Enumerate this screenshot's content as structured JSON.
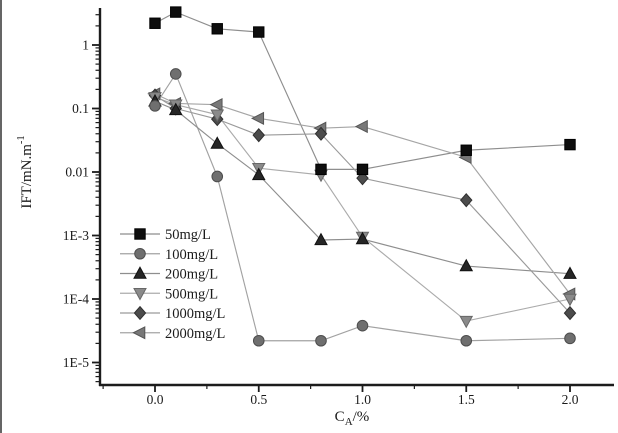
{
  "page": {
    "background": "#ffffff",
    "scan_edge_color": "#4a4a4a",
    "axis_text_color": "#1a1a1a",
    "axis_line_color": "#1c1c1c"
  },
  "chart_data": {
    "type": "line",
    "title": "",
    "xlabel": "C_A/%",
    "xlabel_rich": {
      "base": "C",
      "subscript": "A",
      "rest": "/%"
    },
    "ylabel": "IFT/mN.m-1",
    "ylabel_rich": {
      "base": "IFT/mN.m",
      "superscript": "-1"
    },
    "x_scale": "linear",
    "y_scale": "log",
    "xlim": [
      -0.27,
      2.21
    ],
    "ylim": [
      4.5e-06,
      3.8
    ],
    "grid": false,
    "x_ticks": [
      {
        "v": 0.0,
        "label": "0.0"
      },
      {
        "v": 0.5,
        "label": "0.5"
      },
      {
        "v": 1.0,
        "label": "1.0"
      },
      {
        "v": 1.5,
        "label": "1.5"
      },
      {
        "v": 2.0,
        "label": "2.0"
      }
    ],
    "x_minor_tick_step": 0.25,
    "y_ticks": [
      {
        "v": 1,
        "label": "1"
      },
      {
        "v": 0.1,
        "label": "0.1"
      },
      {
        "v": 0.01,
        "label": "0.01"
      },
      {
        "v": 0.001,
        "label": "1E-3"
      },
      {
        "v": 0.0001,
        "label": "1E-4"
      },
      {
        "v": 1e-05,
        "label": "1E-5"
      }
    ],
    "y_minor_ticks": "log-decade-subdivisions",
    "legend": {
      "position": "inside-lower-left",
      "entries": [
        "50mg/L",
        "100mg/L",
        "200mg/L",
        "500mg/L",
        "1000mg/L",
        "2000mg/L"
      ]
    },
    "x": [
      0.0,
      0.1,
      0.3,
      0.5,
      0.8,
      1.0,
      1.5,
      2.0
    ],
    "series": [
      {
        "name": "50mg/L",
        "marker": "square",
        "marker_color": "#0e0e0e",
        "edge_color": "#000000",
        "line_color": "#8e8e8e",
        "values": [
          2.2,
          3.3,
          1.8,
          1.6,
          0.011,
          0.011,
          0.022,
          0.027
        ]
      },
      {
        "name": "100mg/L",
        "marker": "circle",
        "marker_color": "#6f6f6f",
        "edge_color": "#4d4d4d",
        "line_color": "#a2a2a2",
        "values": [
          0.11,
          0.35,
          0.0085,
          2.2e-05,
          2.2e-05,
          3.8e-05,
          2.2e-05,
          2.4e-05
        ]
      },
      {
        "name": "200mg/L",
        "marker": "triangle-up",
        "marker_color": "#262626",
        "edge_color": "#111111",
        "line_color": "#8e8e8e",
        "values": [
          0.13,
          0.095,
          0.028,
          0.009,
          0.00085,
          0.00088,
          0.00033,
          0.00025
        ]
      },
      {
        "name": "500mg/L",
        "marker": "triangle-down",
        "marker_color": "#8a8a8a",
        "edge_color": "#676767",
        "line_color": "#ababab",
        "values": [
          0.15,
          0.115,
          0.08,
          0.0115,
          0.009,
          0.00095,
          4.5e-05,
          0.0001
        ]
      },
      {
        "name": "1000mg/L",
        "marker": "diamond",
        "marker_color": "#4c4c4c",
        "edge_color": "#2f2f2f",
        "line_color": "#9a9a9a",
        "values": [
          0.16,
          0.1,
          0.068,
          0.038,
          0.04,
          0.008,
          0.0036,
          6e-05
        ]
      },
      {
        "name": "2000mg/L",
        "marker": "triangle-left",
        "marker_color": "#787878",
        "edge_color": "#555555",
        "line_color": "#a5a5a5",
        "values": [
          0.17,
          0.12,
          0.115,
          0.07,
          0.049,
          0.052,
          0.017,
          0.00012
        ]
      }
    ]
  }
}
